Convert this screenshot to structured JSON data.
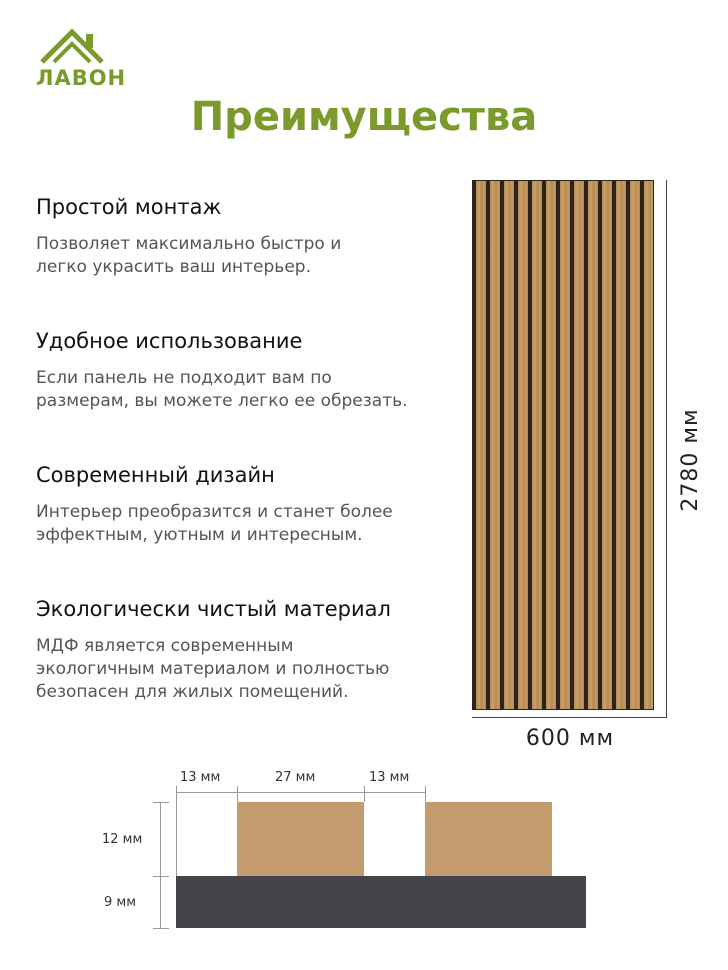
{
  "brand": {
    "name": "ЛАВОН",
    "accent_color": "#7a9a2b",
    "logo_icon": "house-roof-icon"
  },
  "page": {
    "title": "Преимущества"
  },
  "features": [
    {
      "title": "Простой монтаж",
      "description": "Позволяет максимально быстро и\nлегко украсить ваш интерьер."
    },
    {
      "title": "Удобное использование",
      "description": "Если панель не подходит вам по\nразмерам, вы можете легко ее обрезать."
    },
    {
      "title": "Современный дизайн",
      "description": "Интерьер преобразится и станет более\nэффектным, уютным и интересным."
    },
    {
      "title": "Экологически чистый материал",
      "description": "МДФ является современным\nэкологичным материалом и полностью\nбезопасен для жилых помещений."
    }
  ],
  "panel": {
    "height_label": "2780 мм",
    "width_label": "600 мм",
    "wood_color": "#c29a64",
    "slot_color": "#2a241c"
  },
  "cross_section": {
    "gap_left": "13 мм",
    "slat_width": "27 мм",
    "gap_right": "13 мм",
    "slat_height": "12 мм",
    "base_height": "9 мм",
    "slat_color": "#c29c6e",
    "base_color": "#45444a"
  }
}
